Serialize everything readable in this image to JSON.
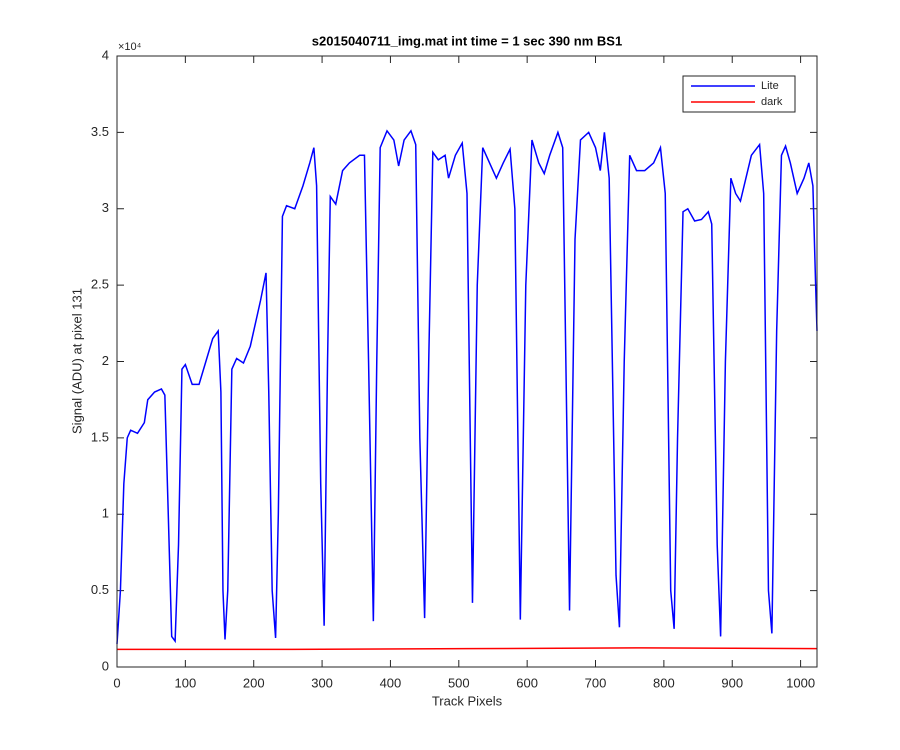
{
  "chart_data": {
    "type": "line",
    "title": "s2015040711_img.mat int time = 1 sec  390 nm BS1",
    "x_label": "Track Pixels",
    "y_label": "Signal (ADU) at pixel 131",
    "y_multiplier": "×10⁴",
    "xlim": [
      0,
      1024
    ],
    "ylim": [
      0,
      40000
    ],
    "xticks": [
      0,
      100,
      200,
      300,
      400,
      500,
      600,
      700,
      800,
      900,
      1000
    ],
    "yticks": [
      0,
      {
        "value": 5000,
        "label": "0.5"
      },
      {
        "value": 10000,
        "label": "1"
      },
      {
        "value": 15000,
        "label": "1.5"
      },
      {
        "value": 20000,
        "label": "2"
      },
      {
        "value": 25000,
        "label": "2.5"
      },
      {
        "value": 30000,
        "label": "3"
      },
      {
        "value": 35000,
        "label": "3.5"
      },
      {
        "value": 40000,
        "label": "4"
      }
    ],
    "legend_location": "northeast",
    "series": [
      {
        "name": "Lite",
        "color": "#0000ff",
        "x": [
          0,
          5,
          10,
          15,
          20,
          30,
          40,
          45,
          55,
          65,
          70,
          75,
          80,
          85,
          90,
          95,
          100,
          110,
          120,
          130,
          140,
          148,
          152,
          155,
          158,
          162,
          168,
          175,
          185,
          195,
          210,
          218,
          222,
          227,
          232,
          236,
          242,
          248,
          260,
          272,
          282,
          288,
          292,
          298,
          303,
          308,
          312,
          320,
          330,
          340,
          355,
          362,
          368,
          375,
          380,
          385,
          395,
          405,
          412,
          420,
          430,
          437,
          443,
          450,
          456,
          462,
          470,
          480,
          485,
          495,
          505,
          512,
          520,
          527,
          535,
          545,
          555,
          565,
          575,
          582,
          590,
          598,
          607,
          617,
          625,
          633,
          645,
          652,
          662,
          670,
          678,
          690,
          700,
          707,
          713,
          720,
          730,
          735,
          742,
          750,
          760,
          772,
          785,
          795,
          802,
          810,
          815,
          820,
          828,
          835,
          845,
          855,
          865,
          870,
          878,
          883,
          890,
          898,
          905,
          912,
          920,
          928,
          940,
          946,
          953,
          958,
          965,
          972,
          978,
          985,
          995,
          1005,
          1012,
          1018,
          1022,
          1024
        ],
        "values": [
          1500,
          5000,
          12000,
          15000,
          15500,
          15300,
          16000,
          17500,
          18000,
          18200,
          17800,
          10000,
          2000,
          1700,
          8000,
          19500,
          19800,
          18500,
          18500,
          20000,
          21500,
          22000,
          18000,
          5000,
          1800,
          5000,
          19500,
          20200,
          19900,
          21000,
          24000,
          25800,
          18000,
          5000,
          1900,
          10000,
          29500,
          30200,
          30000,
          31500,
          33000,
          34000,
          31500,
          12000,
          2700,
          20000,
          30800,
          30300,
          32500,
          33000,
          33500,
          33500,
          20000,
          3000,
          20000,
          34000,
          35100,
          34500,
          32800,
          34500,
          35100,
          34200,
          15000,
          3200,
          20000,
          33700,
          33200,
          33500,
          32000,
          33500,
          34300,
          31000,
          4200,
          25000,
          34000,
          33000,
          32000,
          33000,
          33900,
          30000,
          3100,
          25000,
          34500,
          33000,
          32300,
          33500,
          35000,
          34000,
          3700,
          28000,
          34500,
          35000,
          34000,
          32500,
          35000,
          32000,
          6000,
          2600,
          20000,
          33500,
          32500,
          32500,
          33000,
          34000,
          31000,
          5000,
          2500,
          15000,
          29800,
          30000,
          29200,
          29300,
          29800,
          29000,
          8000,
          2000,
          20000,
          32000,
          31000,
          30500,
          32000,
          33500,
          34200,
          31000,
          5000,
          2200,
          22000,
          33500,
          34100,
          33000,
          31000,
          32000,
          33000,
          31500,
          25000,
          22000
        ]
      },
      {
        "name": "dark",
        "color": "#ff0000",
        "x": [
          0,
          256,
          512,
          768,
          1024
        ],
        "values": [
          1150,
          1150,
          1200,
          1250,
          1200
        ]
      }
    ]
  }
}
